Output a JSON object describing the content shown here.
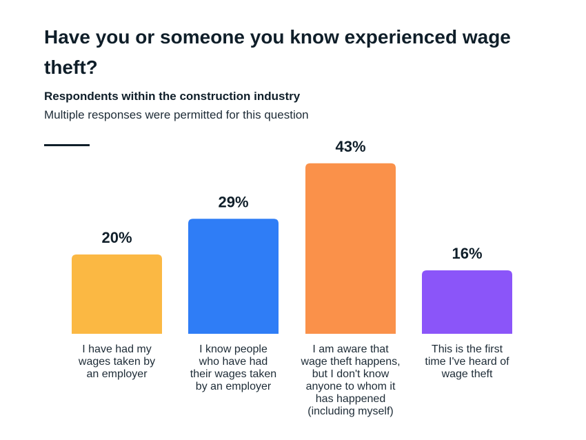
{
  "title": "Have you or someone you know experienced wage theft?",
  "subtitle": "Respondents within the construction industry",
  "note": "Multiple responses were permitted for this question",
  "chart_data": {
    "type": "bar",
    "title": "Have you or someone you know experienced wage theft?",
    "subtitle": "Respondents within the construction industry",
    "xlabel": "",
    "ylabel": "",
    "ylim": [
      0,
      43
    ],
    "grid": false,
    "categories": [
      [
        "I have had my",
        "wages taken by",
        "an employer"
      ],
      [
        "I know people",
        "who have had",
        "their wages taken",
        "by an employer"
      ],
      [
        "I am aware that",
        "wage theft happens,",
        "but I don't know",
        "anyone to whom it",
        "has happened",
        "(including myself)"
      ],
      [
        "This is the first",
        "time I've heard of",
        "wage theft"
      ]
    ],
    "values": [
      20,
      29,
      43,
      16
    ],
    "labels": [
      "20%",
      "29%",
      "43%",
      "16%"
    ],
    "colors": [
      "#fbb843",
      "#2f7df6",
      "#fa914a",
      "#8b55f9"
    ]
  }
}
